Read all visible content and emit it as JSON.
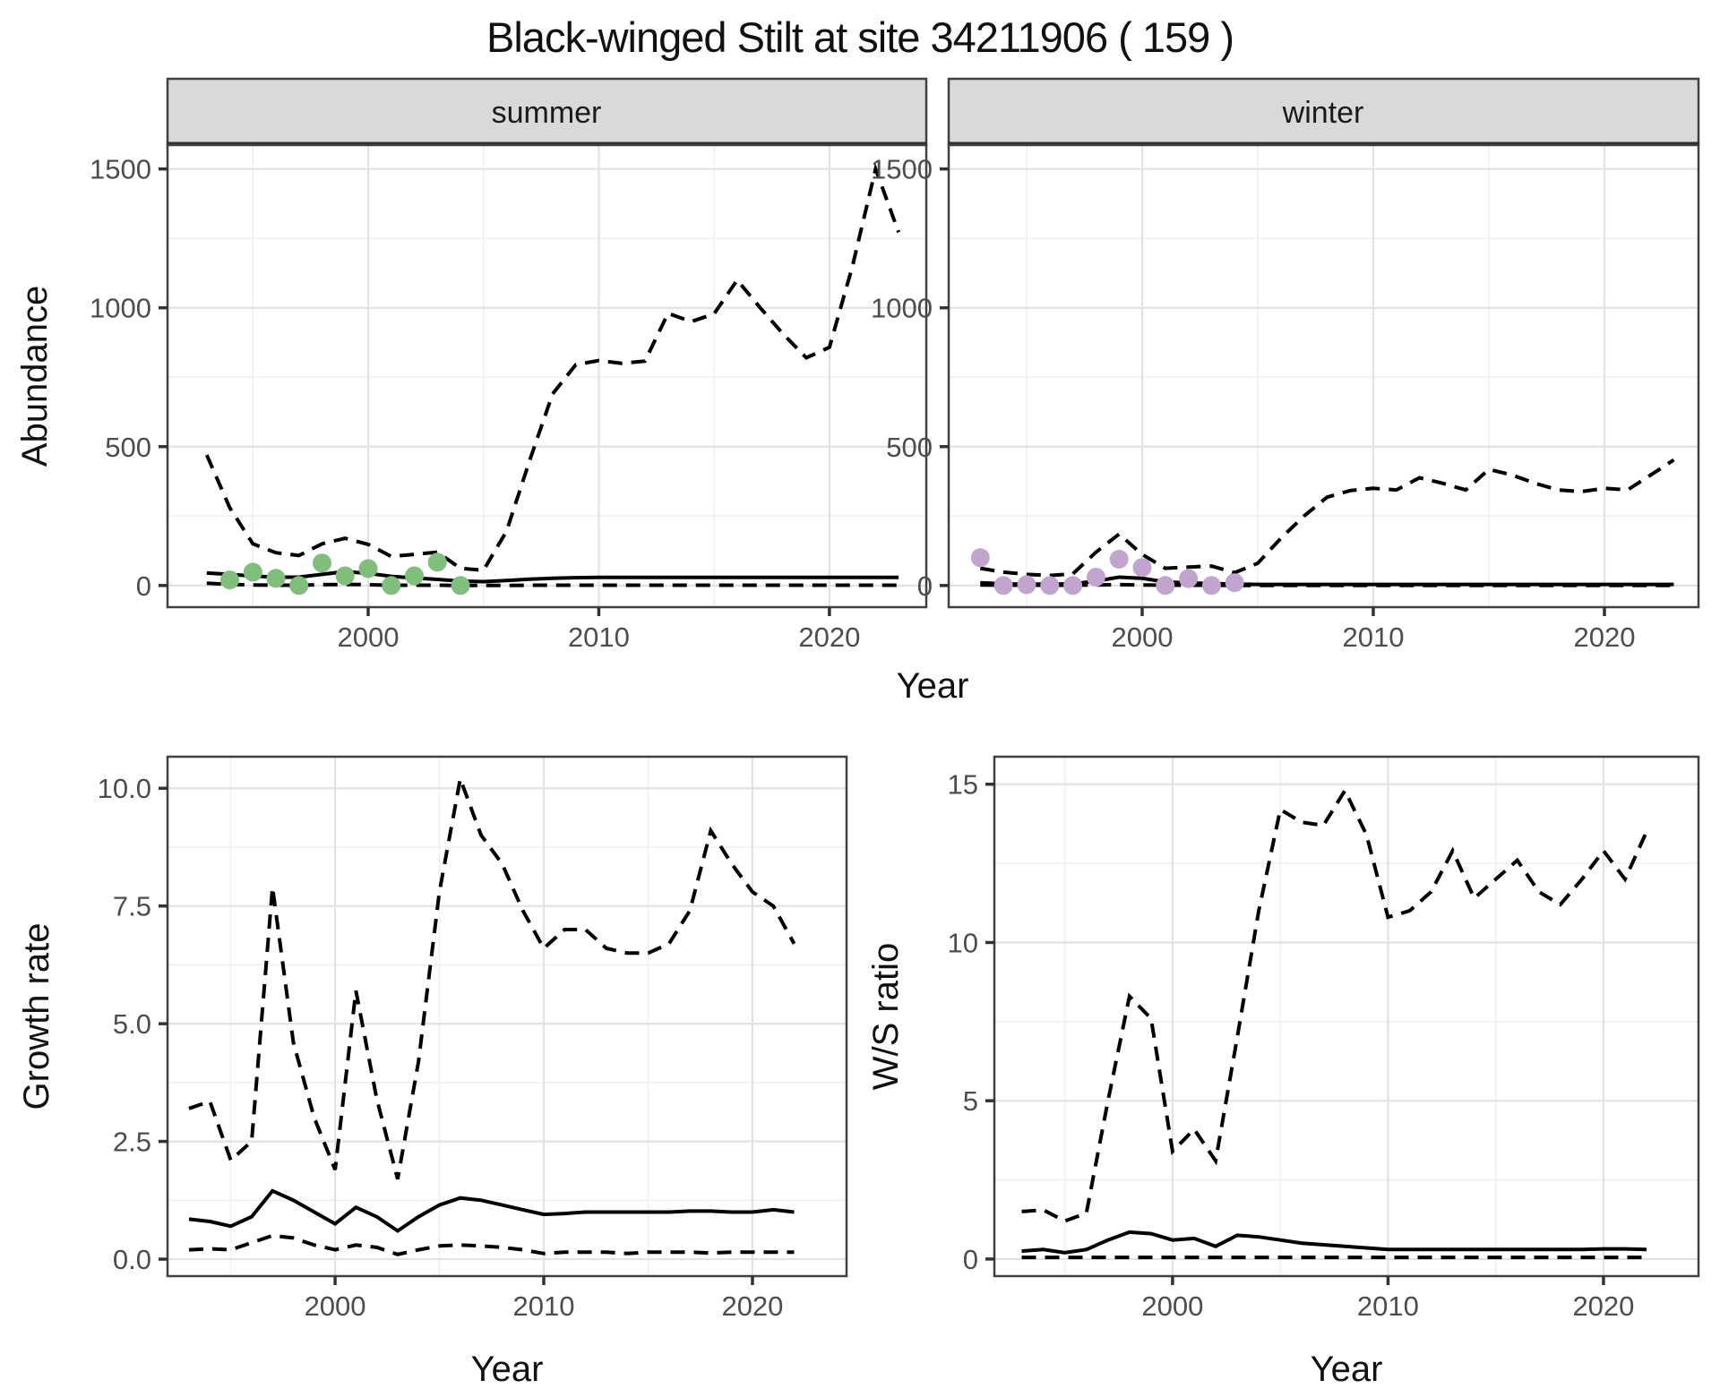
{
  "title": "Black-winged Stilt at site 34211906 ( 159 )",
  "colors": {
    "summer_point": "#7fbf7b",
    "winter_point": "#c2a5cf",
    "line": "#000000",
    "strip_background": "#d9d9d9",
    "grid_major": "#e2e2e2",
    "grid_minor": "#efefef",
    "axis_text": "#4d4d4d",
    "panel_border": "#404040"
  },
  "chart_data": [
    {
      "id": "abundance-summer",
      "type": "line",
      "facet_label": "summer",
      "xlabel": "Year",
      "ylabel": "Abundance",
      "xlim": [
        1991.3,
        2024.2
      ],
      "ylim": [
        -78,
        1586
      ],
      "x_ticks": {
        "values": [
          2000,
          2010,
          2020
        ],
        "labels": [
          "2000",
          "2010",
          "2020"
        ]
      },
      "y_ticks": {
        "values": [
          0,
          500,
          1000,
          1500
        ],
        "labels": [
          "0",
          "500",
          "1000",
          "1500"
        ]
      },
      "series": [
        {
          "name": "upper-ci",
          "style": "dashed",
          "x": [
            1993,
            1994,
            1995,
            1996,
            1997,
            1998,
            1999,
            2000,
            2001,
            2002,
            2003,
            2004,
            2005,
            2006,
            2007,
            2008,
            2009,
            2010,
            2011,
            2012,
            2013,
            2014,
            2015,
            2016,
            2017,
            2018,
            2019,
            2020,
            2021,
            2022,
            2023
          ],
          "y": [
            470,
            280,
            150,
            118,
            108,
            150,
            170,
            148,
            105,
            112,
            120,
            62,
            55,
            195,
            450,
            690,
            795,
            810,
            800,
            808,
            980,
            950,
            978,
            1100,
            1000,
            905,
            820,
            858,
            1150,
            1500,
            1272
          ]
        },
        {
          "name": "lower-ci",
          "style": "dashed",
          "x": [
            1993,
            1994,
            1995,
            1996,
            1997,
            1998,
            1999,
            2000,
            2001,
            2002,
            2003,
            2004,
            2005,
            2006,
            2007,
            2008,
            2009,
            2010,
            2011,
            2012,
            2013,
            2014,
            2015,
            2016,
            2017,
            2018,
            2019,
            2020,
            2021,
            2022,
            2023
          ],
          "y": [
            8,
            4,
            2,
            1,
            1,
            3,
            4,
            3,
            1,
            1,
            1,
            0,
            0,
            0,
            1,
            1,
            1,
            1,
            1,
            1,
            1,
            1,
            1,
            1,
            1,
            1,
            1,
            1,
            1,
            1,
            1
          ]
        },
        {
          "name": "median",
          "style": "solid",
          "x": [
            1993,
            1994,
            1995,
            1996,
            1997,
            1998,
            1999,
            2000,
            2001,
            2002,
            2003,
            2004,
            2005,
            2006,
            2007,
            2008,
            2009,
            2010,
            2011,
            2012,
            2013,
            2014,
            2015,
            2016,
            2017,
            2018,
            2019,
            2020,
            2021,
            2022,
            2023
          ],
          "y": [
            45,
            40,
            34,
            30,
            30,
            40,
            50,
            44,
            33,
            27,
            22,
            16,
            14,
            18,
            23,
            26,
            28,
            29,
            29,
            29,
            29,
            29,
            29,
            29,
            29,
            29,
            29,
            29,
            29,
            29,
            29
          ]
        },
        {
          "name": "observed",
          "style": "points",
          "color": "#7fbf7b",
          "x": [
            1994,
            1995,
            1996,
            1997,
            1998,
            1999,
            2000,
            2001,
            2002,
            2003,
            2004
          ],
          "y": [
            20,
            48,
            26,
            0,
            81,
            35,
            61,
            0,
            35,
            84,
            0
          ]
        }
      ]
    },
    {
      "id": "abundance-winter",
      "type": "line",
      "facet_label": "winter",
      "xlabel": "Year",
      "ylabel": "Abundance",
      "xlim": [
        1991.63,
        2024.07
      ],
      "ylim": [
        -78,
        1586
      ],
      "x_ticks": {
        "values": [
          2000,
          2010,
          2020
        ],
        "labels": [
          "2000",
          "2010",
          "2020"
        ]
      },
      "y_ticks": {
        "values": [
          0,
          500,
          1000,
          1500
        ],
        "labels": [
          "0",
          "500",
          "1000",
          "1500"
        ]
      },
      "series": [
        {
          "name": "upper-ci",
          "style": "dashed",
          "x": [
            1993,
            1994,
            1995,
            1996,
            1997,
            1998,
            1999,
            2000,
            2001,
            2002,
            2003,
            2004,
            2005,
            2006,
            2007,
            2008,
            2009,
            2010,
            2011,
            2012,
            2013,
            2014,
            2015,
            2016,
            2017,
            2018,
            2019,
            2020,
            2021,
            2022,
            2023
          ],
          "y": [
            62,
            48,
            40,
            36,
            42,
            120,
            185,
            112,
            62,
            66,
            70,
            46,
            80,
            170,
            250,
            318,
            342,
            350,
            344,
            388,
            368,
            344,
            418,
            398,
            368,
            344,
            338,
            350,
            344,
            398,
            452
          ]
        },
        {
          "name": "lower-ci",
          "style": "dashed",
          "x": [
            1993,
            1994,
            1995,
            1996,
            1997,
            1998,
            1999,
            2000,
            2001,
            2002,
            2003,
            2004,
            2005,
            2006,
            2007,
            2008,
            2009,
            2010,
            2011,
            2012,
            2013,
            2014,
            2015,
            2016,
            2017,
            2018,
            2019,
            2020,
            2021,
            2022,
            2023
          ],
          "y": [
            2,
            1,
            1,
            1,
            1,
            2,
            3,
            2,
            1,
            1,
            1,
            0,
            0,
            0,
            0,
            0,
            0,
            0,
            0,
            0,
            0,
            0,
            0,
            0,
            0,
            0,
            0,
            0,
            0,
            0,
            0
          ]
        },
        {
          "name": "median",
          "style": "solid",
          "x": [
            1993,
            1994,
            1995,
            1996,
            1997,
            1998,
            1999,
            2000,
            2001,
            2002,
            2003,
            2004,
            2005,
            2006,
            2007,
            2008,
            2009,
            2010,
            2011,
            2012,
            2013,
            2014,
            2015,
            2016,
            2017,
            2018,
            2019,
            2020,
            2021,
            2022,
            2023
          ],
          "y": [
            10,
            6,
            5,
            5,
            6,
            16,
            30,
            26,
            13,
            9,
            7,
            5,
            4,
            4,
            4,
            4,
            4,
            4,
            4,
            4,
            4,
            4,
            4,
            4,
            4,
            4,
            4,
            4,
            4,
            4,
            4
          ]
        },
        {
          "name": "observed",
          "style": "points",
          "color": "#c2a5cf",
          "x": [
            1993,
            1994,
            1995,
            1996,
            1997,
            1998,
            1999,
            2000,
            2001,
            2002,
            2003,
            2004
          ],
          "y": [
            100,
            0,
            3,
            0,
            0,
            30,
            95,
            65,
            0,
            25,
            0,
            10
          ]
        }
      ]
    },
    {
      "id": "growth-rate",
      "type": "line",
      "facet_label": "",
      "xlabel": "Year",
      "ylabel": "Growth rate",
      "xlim": [
        1991.97,
        2024.51
      ],
      "ylim": [
        -0.36,
        10.67
      ],
      "x_ticks": {
        "values": [
          2000,
          2010,
          2020
        ],
        "labels": [
          "2000",
          "2010",
          "2020"
        ]
      },
      "y_ticks": {
        "values": [
          0,
          2.5,
          5,
          7.5,
          10
        ],
        "labels": [
          "0.0",
          "2.5",
          "5.0",
          "7.5",
          "10.0"
        ]
      },
      "series": [
        {
          "name": "upper-ci",
          "style": "dashed",
          "x": [
            1993,
            1994,
            1995,
            1996,
            1997,
            1998,
            1999,
            2000,
            2001,
            2002,
            2003,
            2004,
            2005,
            2006,
            2007,
            2008,
            2009,
            2010,
            2011,
            2012,
            2013,
            2014,
            2015,
            2016,
            2017,
            2018,
            2019,
            2020,
            2021,
            2022
          ],
          "y": [
            3.2,
            3.35,
            2.1,
            2.5,
            7.9,
            4.6,
            3.0,
            1.9,
            5.7,
            3.4,
            1.7,
            4.2,
            7.8,
            10.2,
            9.0,
            8.4,
            7.4,
            6.6,
            7.0,
            7.0,
            6.6,
            6.5,
            6.5,
            6.7,
            7.4,
            9.1,
            8.4,
            7.8,
            7.5,
            6.7
          ]
        },
        {
          "name": "lower-ci",
          "style": "dashed",
          "x": [
            1993,
            1994,
            1995,
            1996,
            1997,
            1998,
            1999,
            2000,
            2001,
            2002,
            2003,
            2004,
            2005,
            2006,
            2007,
            2008,
            2009,
            2010,
            2011,
            2012,
            2013,
            2014,
            2015,
            2016,
            2017,
            2018,
            2019,
            2020,
            2021,
            2022
          ],
          "y": [
            0.2,
            0.22,
            0.2,
            0.35,
            0.5,
            0.45,
            0.3,
            0.2,
            0.3,
            0.25,
            0.1,
            0.2,
            0.28,
            0.3,
            0.28,
            0.25,
            0.2,
            0.12,
            0.15,
            0.15,
            0.15,
            0.12,
            0.15,
            0.15,
            0.15,
            0.13,
            0.15,
            0.15,
            0.15,
            0.15
          ]
        },
        {
          "name": "median",
          "style": "solid",
          "x": [
            1993,
            1994,
            1995,
            1996,
            1997,
            1998,
            1999,
            2000,
            2001,
            2002,
            2003,
            2004,
            2005,
            2006,
            2007,
            2008,
            2009,
            2010,
            2011,
            2012,
            2013,
            2014,
            2015,
            2016,
            2017,
            2018,
            2019,
            2020,
            2021,
            2022
          ],
          "y": [
            0.85,
            0.8,
            0.7,
            0.9,
            1.45,
            1.25,
            1.0,
            0.75,
            1.1,
            0.9,
            0.6,
            0.9,
            1.15,
            1.3,
            1.25,
            1.15,
            1.05,
            0.95,
            0.97,
            1.0,
            1.0,
            1.0,
            1.0,
            1.0,
            1.02,
            1.02,
            1.0,
            1.0,
            1.05,
            1.0
          ]
        }
      ]
    },
    {
      "id": "ws-ratio",
      "type": "line",
      "facet_label": "",
      "xlabel": "Year",
      "ylabel": "W/S ratio",
      "xlim": [
        1991.73,
        2024.41
      ],
      "ylim": [
        -0.54,
        15.87
      ],
      "x_ticks": {
        "values": [
          2000,
          2010,
          2020
        ],
        "labels": [
          "2000",
          "2010",
          "2020"
        ]
      },
      "y_ticks": {
        "values": [
          0,
          5,
          10,
          15
        ],
        "labels": [
          "0",
          "5",
          "10",
          "15"
        ]
      },
      "series": [
        {
          "name": "upper-ci",
          "style": "dashed",
          "x": [
            1993,
            1994,
            1995,
            1996,
            1997,
            1998,
            1999,
            2000,
            2001,
            2002,
            2003,
            2004,
            2005,
            2006,
            2007,
            2008,
            2009,
            2010,
            2011,
            2012,
            2013,
            2014,
            2015,
            2016,
            2017,
            2018,
            2019,
            2020,
            2021,
            2022
          ],
          "y": [
            1.5,
            1.55,
            1.2,
            1.45,
            5.0,
            8.3,
            7.6,
            3.4,
            4.1,
            3.1,
            7.0,
            11.0,
            14.2,
            13.8,
            13.7,
            14.8,
            13.4,
            10.8,
            11.0,
            11.6,
            12.9,
            11.4,
            12.0,
            12.6,
            11.6,
            11.2,
            12.0,
            12.9,
            12.0,
            13.5
          ]
        },
        {
          "name": "lower-ci",
          "style": "dashed",
          "x": [
            1993,
            1994,
            1995,
            1996,
            1997,
            1998,
            1999,
            2000,
            2001,
            2002,
            2003,
            2004,
            2005,
            2006,
            2007,
            2008,
            2009,
            2010,
            2011,
            2012,
            2013,
            2014,
            2015,
            2016,
            2017,
            2018,
            2019,
            2020,
            2021,
            2022
          ],
          "y": [
            0.05,
            0.05,
            0.05,
            0.05,
            0.05,
            0.05,
            0.05,
            0.05,
            0.05,
            0.05,
            0.05,
            0.05,
            0.05,
            0.05,
            0.05,
            0.05,
            0.05,
            0.05,
            0.05,
            0.05,
            0.05,
            0.05,
            0.05,
            0.05,
            0.05,
            0.05,
            0.05,
            0.05,
            0.05,
            0.05
          ]
        },
        {
          "name": "median",
          "style": "solid",
          "x": [
            1993,
            1994,
            1995,
            1996,
            1997,
            1998,
            1999,
            2000,
            2001,
            2002,
            2003,
            2004,
            2005,
            2006,
            2007,
            2008,
            2009,
            2010,
            2011,
            2012,
            2013,
            2014,
            2015,
            2016,
            2017,
            2018,
            2019,
            2020,
            2021,
            2022
          ],
          "y": [
            0.25,
            0.3,
            0.2,
            0.3,
            0.6,
            0.85,
            0.8,
            0.6,
            0.65,
            0.4,
            0.75,
            0.7,
            0.6,
            0.5,
            0.45,
            0.4,
            0.35,
            0.3,
            0.3,
            0.3,
            0.3,
            0.3,
            0.3,
            0.3,
            0.3,
            0.3,
            0.3,
            0.32,
            0.32,
            0.3
          ]
        }
      ]
    }
  ]
}
